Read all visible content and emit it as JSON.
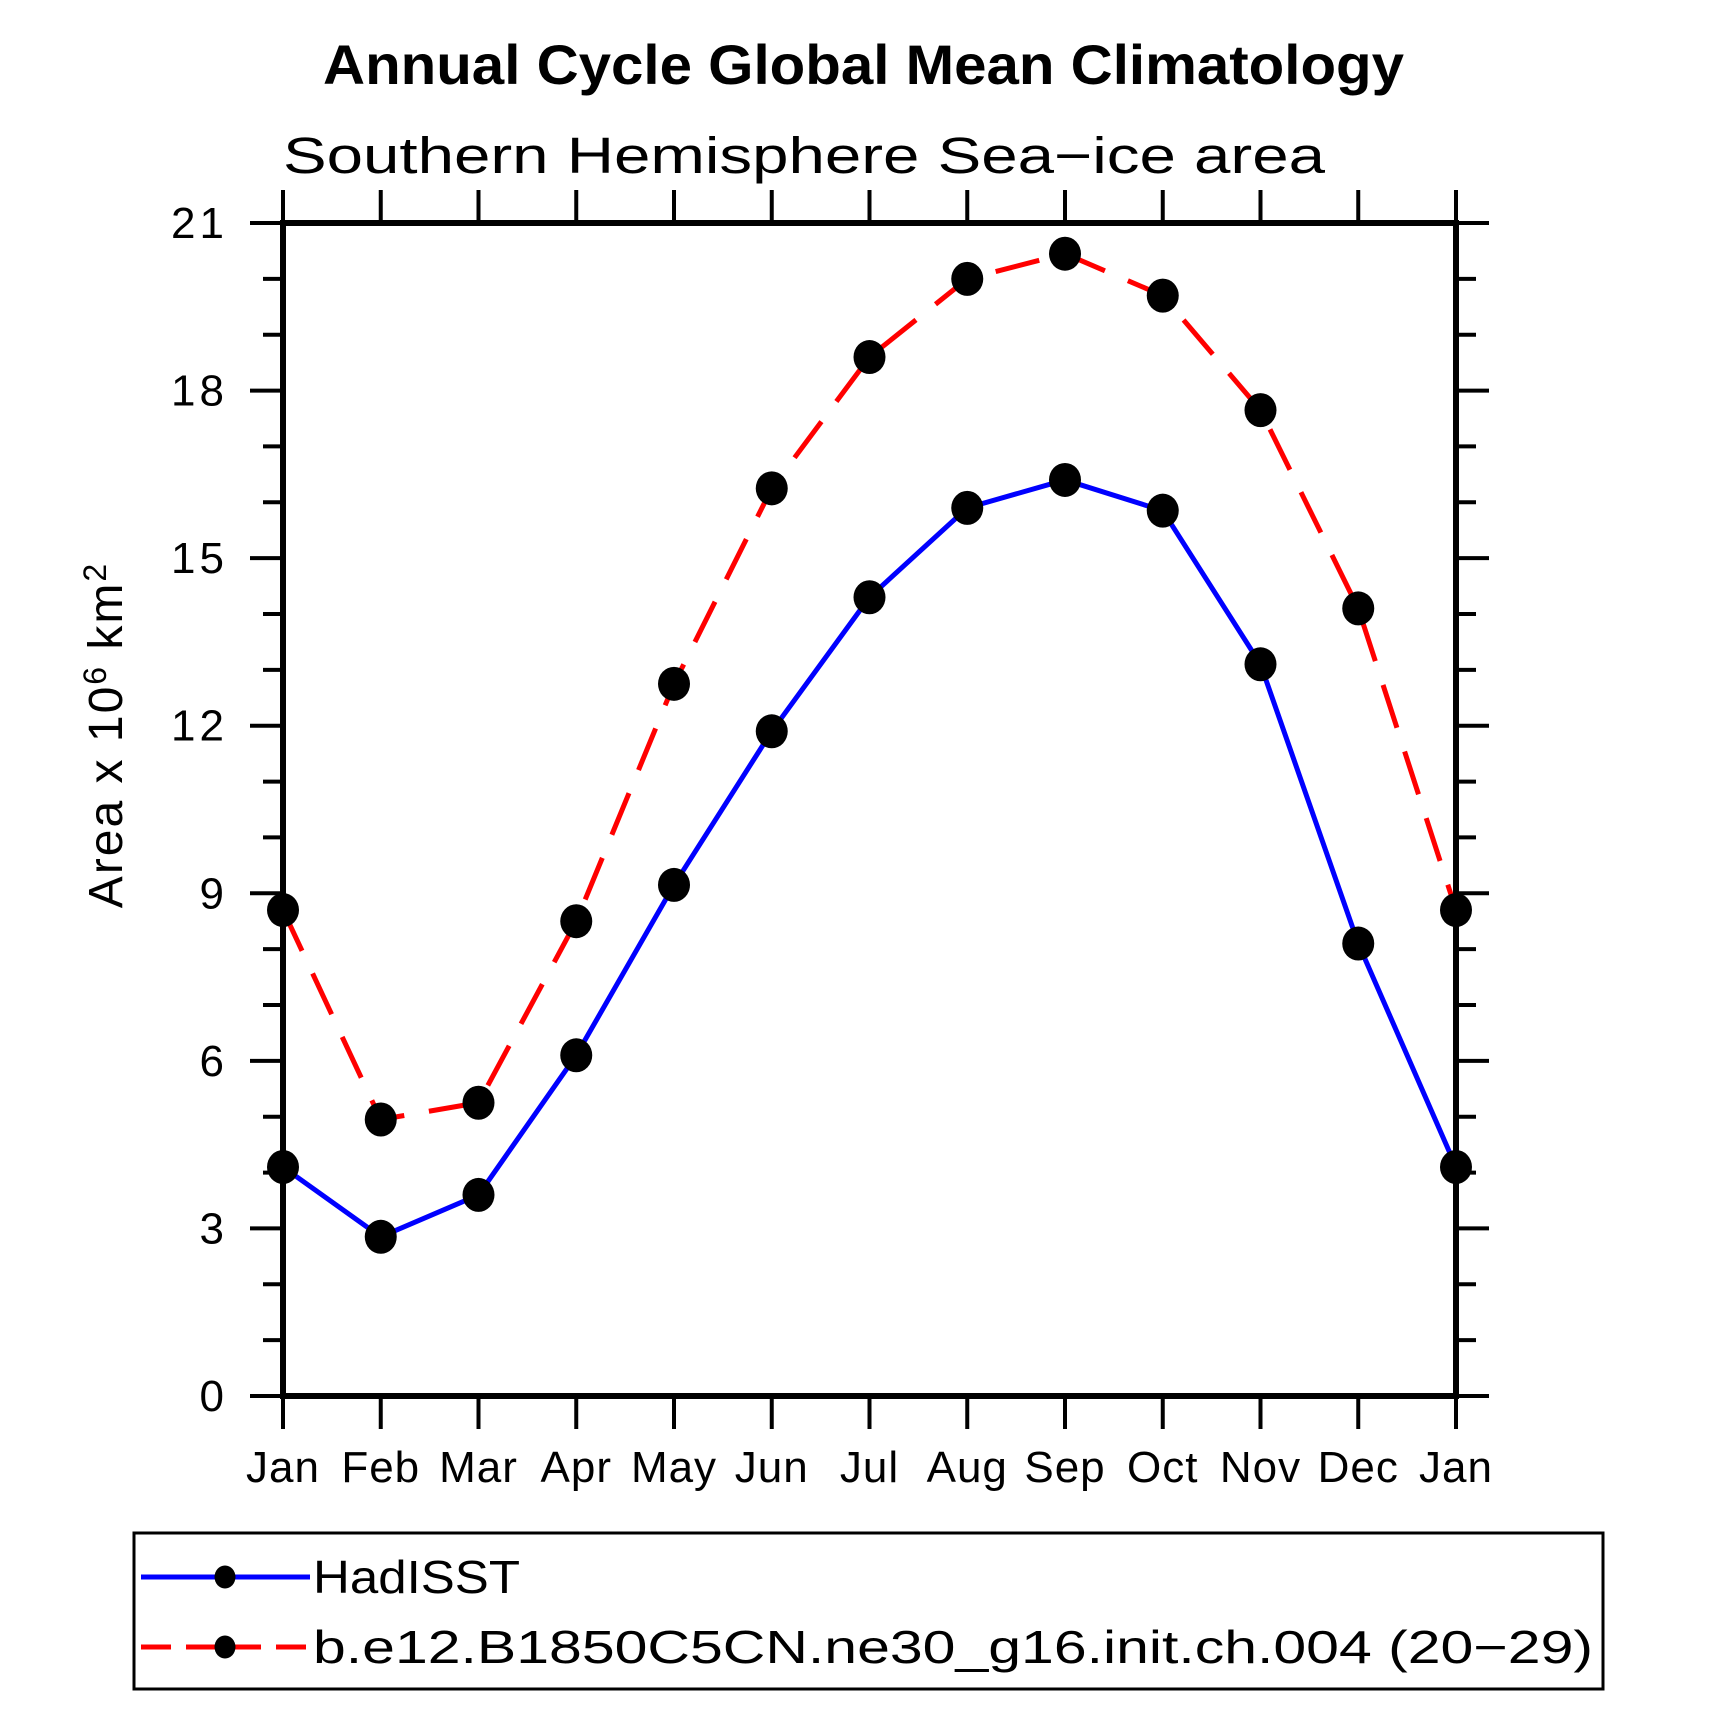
{
  "chart_data": {
    "type": "line",
    "title": "Annual Cycle Global Mean Climatology",
    "subtitle": "Southern Hemisphere Sea−ice area",
    "ylabel_segments": [
      {
        "t": "Area x 10"
      },
      {
        "t": "6",
        "sup": true
      },
      {
        "t": " km"
      },
      {
        "t": "2",
        "sup": true
      }
    ],
    "x_categories": [
      "Jan",
      "Feb",
      "Mar",
      "Apr",
      "May",
      "Jun",
      "Jul",
      "Aug",
      "Sep",
      "Oct",
      "Nov",
      "Dec",
      "Jan"
    ],
    "ylim": [
      0,
      21
    ],
    "ytick_major": [
      0,
      3,
      6,
      9,
      12,
      15,
      18,
      21
    ],
    "ytick_minor_step": 1,
    "grid": false,
    "legend_position": "bottom",
    "axis_color": "#000000",
    "background_color": "#ffffff",
    "series": [
      {
        "name": "HadISST",
        "color": "#0000ff",
        "line_style": "solid",
        "marker": "filled-circle",
        "marker_color": "#000000",
        "values": [
          4.1,
          2.85,
          3.6,
          6.1,
          9.15,
          11.9,
          14.3,
          15.9,
          16.4,
          15.85,
          13.1,
          8.1,
          4.1
        ]
      },
      {
        "name": "b.e12.B1850C5CN.ne30_g16.init.ch.004 (20−29)",
        "color": "#ff0000",
        "line_style": "dashed",
        "marker": "filled-circle",
        "marker_color": "#000000",
        "values": [
          8.7,
          4.95,
          5.25,
          8.5,
          12.75,
          16.25,
          18.6,
          20.0,
          20.45,
          19.7,
          17.65,
          14.1,
          8.7
        ]
      }
    ]
  }
}
